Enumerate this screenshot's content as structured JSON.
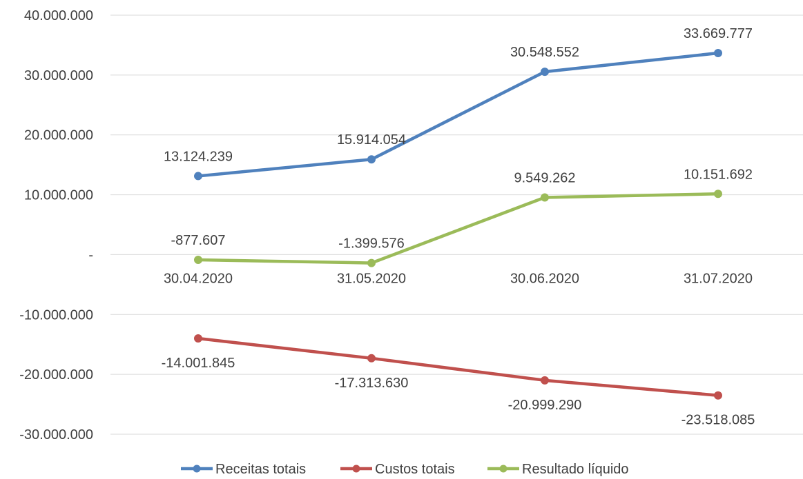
{
  "chart_data": {
    "type": "line",
    "title": "",
    "xlabel": "",
    "ylabel": "",
    "categories": [
      "30.04.2020",
      "31.05.2020",
      "30.06.2020",
      "31.07.2020"
    ],
    "ylim": [
      -30000000,
      40000000
    ],
    "ytick_values": [
      40000000,
      30000000,
      20000000,
      10000000,
      0,
      -10000000,
      -20000000,
      -30000000
    ],
    "ytick_labels": [
      "40.000.000",
      "30.000.000",
      "20.000.000",
      "10.000.000",
      "-",
      "-10.000.000",
      "-20.000.000",
      "-30.000.000"
    ],
    "grid": true,
    "legend_position": "bottom",
    "series": [
      {
        "name": "Receitas totais",
        "color": "#4f81bd",
        "values": [
          13124239,
          15914054,
          30548552,
          33669777
        ],
        "labels": [
          "13.124.239",
          "15.914.054",
          "30.548.552",
          "33.669.777"
        ],
        "label_position": "above"
      },
      {
        "name": "Custos totais",
        "color": "#c0504d",
        "values": [
          -14001845,
          -17313630,
          -20999290,
          -23518085
        ],
        "labels": [
          "-14.001.845",
          "-17.313.630",
          "-20.999.290",
          "-23.518.085"
        ],
        "label_position": "below"
      },
      {
        "name": "Resultado líquido",
        "color": "#9bbb59",
        "values": [
          -877607,
          -1399576,
          9549262,
          10151692
        ],
        "labels": [
          "-877.607",
          "-1.399.576",
          "9.549.262",
          "10.151.692"
        ],
        "label_position": "above"
      }
    ]
  }
}
